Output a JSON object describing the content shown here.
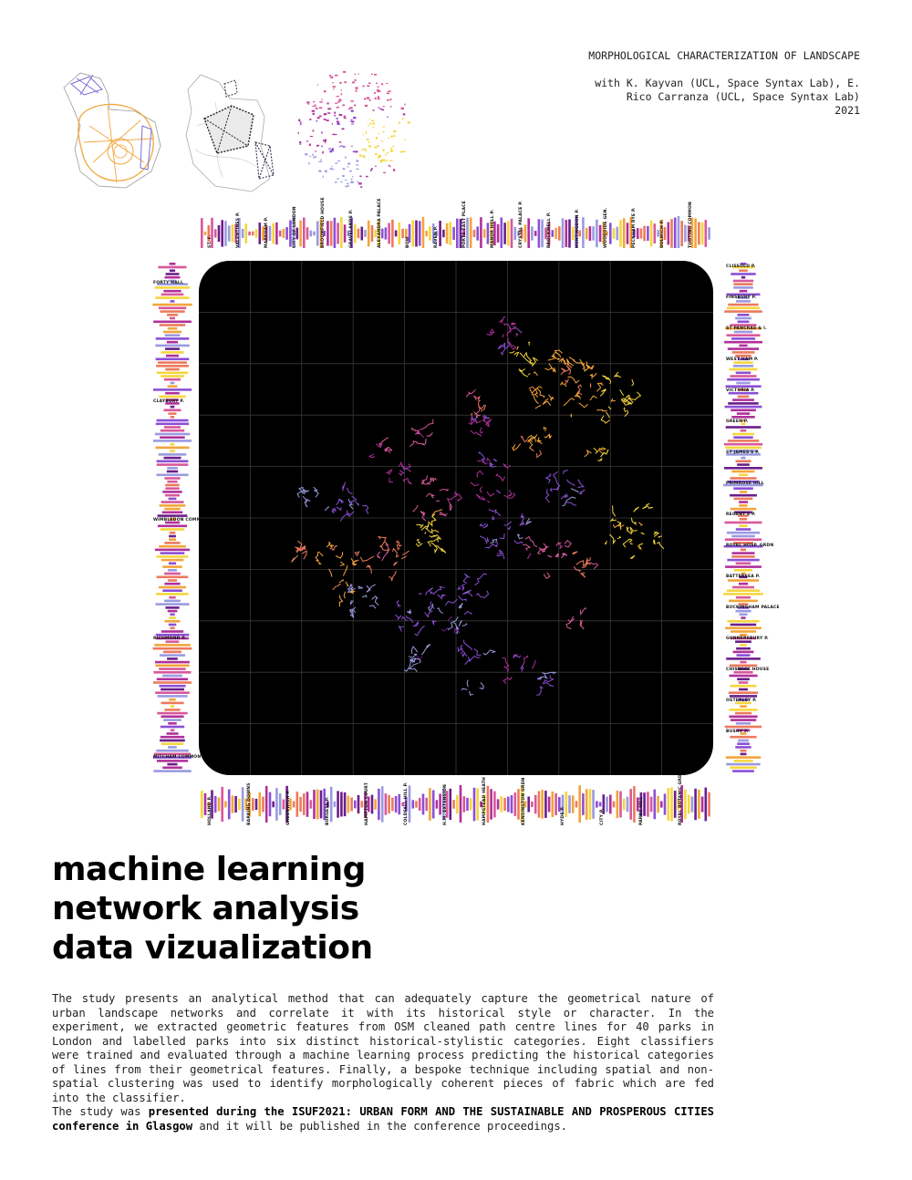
{
  "header": {
    "title": "MORPHOLOGICAL CHARACTERIZATION OF LANDSCAPE",
    "credit_line1": "with K. Kayvan (UCL, Space Syntax Lab), E.",
    "credit_line2": "Rico Carranza (UCL, Space Syntax Lab)",
    "year": "2021"
  },
  "park_labels": {
    "top": [
      "ST. F.",
      "VALENTINES P.",
      "MARKHAM P.",
      "CITY OF LONDON",
      "BROOMFIELD HOUSE",
      "GRAVELANDS P.",
      "ALEXANDRA PALACE",
      "BOW",
      "RAVEN P.",
      "PORTS EAST PLACE",
      "MANOR HOLL P.",
      "CRYSTAL PALACE P.",
      "BROCKWELL P.",
      "HUNTINGDON P.",
      "WOODSIDE GEN.",
      "PECKHAM RYE P.",
      "DULWICH P.",
      "TOOTING COMMON"
    ],
    "left": [
      "FORTY HALL",
      "CLAYBURY P.",
      "WIMBLEDON COMMON",
      "RICHMOND P.",
      "MITCHAM COMMON"
    ],
    "right": [
      "CLISSOLD P.",
      "FINSBURY P.",
      "ST PANCRAS & I.",
      "WEST HAM P.",
      "VICTORIA P.",
      "GREEN P.",
      "ST JAMES'S P.",
      "PRIMROSE HILL",
      "REGENT'S P.",
      "ROYAL HOSP. GRDN",
      "BATTERSEA P.",
      "BUCKINGHAM PALACE",
      "GUNNERSBURY P.",
      "CHISWICK HOUSE",
      "OSTERLEY P.",
      "BUSHY P."
    ],
    "bottom": [
      "HOLLAND P.",
      "BARKING DOWNS",
      "GREENWICH P.",
      "BURGESS P.",
      "HAMPTON COURT",
      "COLDFALL HILL P.",
      "H.M. EXTENSION",
      "HAMPSTEAD HEATH",
      "KENSINGTON GRDN",
      "HYDE P.",
      "CITY P.",
      "PARKS HILL",
      "ROYAL BOTANIC GRDN"
    ]
  },
  "palette": {
    "background": "#000000",
    "yellow": "#f5d63d",
    "orange": "#f2a53a",
    "coral": "#ec7a5c",
    "pink": "#d8589a",
    "magenta": "#b0309a",
    "purple": "#8b4fd6",
    "lavender": "#9a9ae0",
    "deep": "#6b1f8a"
  },
  "heading": {
    "line1": "machine learning",
    "line2": "network analysis",
    "line3": "data vizualization"
  },
  "body": {
    "paragraph": "The study presents an analytical method that can adequately capture the geometrical nature of urban landscape networks and correlate it with its historical style or character. In the experiment, we extracted geometric features from OSM cleaned path centre lines for 40 parks in London and labelled parks into six distinct historical-stylistic categories. Eight classifiers were trained and evaluated through a machine learning process predicting the historical categories of lines from their geometrical features. Finally, a bespoke technique including spatial and non-spatial clustering was used to identify morphologically coherent pieces of fabric which are fed into the classifier.",
    "presented_prefix": "The study was ",
    "presented_bold": "presented during the ISUF2021: URBAN FORM AND THE SUSTAINABLE AND PROSPEROUS CITIES conference in Glasgow",
    "presented_suffix": " and it will be published in the conference proceedings."
  }
}
